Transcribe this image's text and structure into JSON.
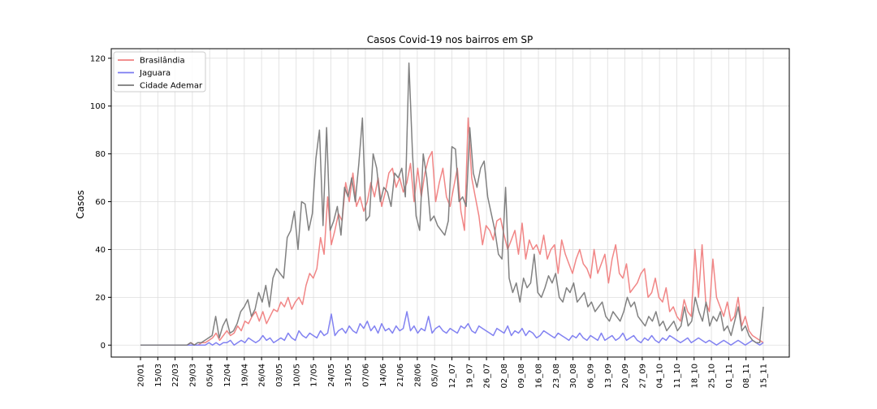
{
  "chart_data": {
    "type": "line",
    "title": "Casos Covid-19 nos bairros em SP",
    "xlabel": "",
    "ylabel": "Casos",
    "ylim": [
      -5,
      124
    ],
    "yticks": [
      0,
      20,
      40,
      60,
      80,
      100,
      120
    ],
    "grid": true,
    "legend_position": "top-left",
    "x_start": "20/01",
    "x_end": "20/11",
    "xticks": [
      "20/01",
      "15/03",
      "22/03",
      "29/03",
      "05/04",
      "12/04",
      "19/04",
      "26/04",
      "03/05",
      "10/05",
      "17/05",
      "24/05",
      "31/05",
      "07/06",
      "14/06",
      "21/06",
      "28/06",
      "05/07",
      "12_07",
      "19_07",
      "26_07",
      "02_08",
      "09_08",
      "16_08",
      "23_08",
      "30_08",
      "06_09",
      "13_09",
      "20_09",
      "27_09",
      "04_10",
      "11_10",
      "18_10",
      "25_10",
      "01_11",
      "08_11",
      "15_11"
    ],
    "series": [
      {
        "name": "Brasilândia",
        "color": "#f08080",
        "values": [
          0,
          0,
          0,
          0,
          0,
          0,
          0,
          0,
          0,
          0,
          0,
          0,
          0,
          0,
          1,
          0,
          0,
          1,
          1,
          2,
          3,
          5,
          2,
          4,
          6,
          4,
          5,
          8,
          6,
          10,
          9,
          12,
          14,
          10,
          14,
          9,
          12,
          15,
          14,
          18,
          16,
          20,
          15,
          18,
          20,
          17,
          25,
          30,
          28,
          32,
          45,
          38,
          62,
          42,
          48,
          55,
          52,
          68,
          60,
          72,
          58,
          62,
          56,
          60,
          68,
          62,
          70,
          58,
          64,
          72,
          74,
          66,
          70,
          64,
          68,
          76,
          60,
          74,
          62,
          72,
          78,
          81,
          60,
          68,
          74,
          62,
          58,
          66,
          74,
          56,
          48,
          95,
          70,
          62,
          54,
          42,
          50,
          48,
          44,
          52,
          53,
          46,
          40,
          44,
          48,
          38,
          51,
          36,
          44,
          40,
          42,
          38,
          46,
          36,
          40,
          42,
          30,
          44,
          38,
          34,
          30,
          36,
          40,
          34,
          32,
          28,
          40,
          30,
          34,
          38,
          26,
          36,
          42,
          30,
          28,
          34,
          22,
          24,
          26,
          30,
          32,
          20,
          22,
          28,
          20,
          18,
          24,
          14,
          16,
          12,
          10,
          19,
          14,
          12,
          40,
          20,
          42,
          18,
          14,
          36,
          20,
          16,
          12,
          18,
          10,
          12,
          20,
          8,
          12,
          6,
          4,
          3,
          2,
          1
        ],
        "labels": "daily"
      },
      {
        "name": "Jaguara",
        "color": "#7b7bf0",
        "values": [
          0,
          0,
          0,
          0,
          0,
          0,
          0,
          0,
          0,
          0,
          0,
          0,
          0,
          0,
          0,
          0,
          0,
          0,
          0,
          1,
          0,
          1,
          0,
          1,
          1,
          2,
          0,
          1,
          2,
          1,
          3,
          2,
          1,
          2,
          4,
          2,
          3,
          1,
          2,
          3,
          2,
          5,
          3,
          2,
          6,
          4,
          3,
          5,
          4,
          3,
          6,
          4,
          5,
          13,
          4,
          6,
          7,
          5,
          8,
          6,
          5,
          9,
          7,
          10,
          6,
          8,
          5,
          9,
          6,
          7,
          5,
          8,
          6,
          7,
          14,
          6,
          8,
          5,
          7,
          6,
          12,
          5,
          7,
          8,
          6,
          5,
          7,
          6,
          5,
          8,
          7,
          9,
          6,
          5,
          8,
          7,
          6,
          5,
          4,
          7,
          6,
          5,
          8,
          4,
          6,
          5,
          7,
          4,
          6,
          5,
          3,
          4,
          6,
          5,
          4,
          3,
          5,
          4,
          3,
          2,
          4,
          3,
          5,
          3,
          2,
          4,
          3,
          2,
          5,
          2,
          3,
          4,
          2,
          3,
          5,
          2,
          3,
          4,
          2,
          1,
          3,
          2,
          4,
          2,
          1,
          3,
          2,
          4,
          3,
          2,
          1,
          2,
          3,
          1,
          2,
          3,
          2,
          1,
          2,
          1,
          0,
          1,
          2,
          1,
          0,
          1,
          2,
          1,
          0,
          1,
          2,
          1,
          0,
          1
        ],
        "labels": "daily"
      },
      {
        "name": "Cidade Ademar",
        "color": "#7a7a7a",
        "values": [
          0,
          0,
          0,
          0,
          0,
          0,
          0,
          0,
          0,
          0,
          0,
          0,
          0,
          0,
          1,
          0,
          1,
          1,
          2,
          3,
          4,
          12,
          3,
          8,
          11,
          5,
          6,
          9,
          14,
          16,
          19,
          12,
          15,
          22,
          18,
          25,
          16,
          28,
          32,
          30,
          28,
          45,
          48,
          56,
          40,
          60,
          59,
          48,
          55,
          78,
          90,
          50,
          91,
          48,
          52,
          58,
          46,
          66,
          62,
          70,
          60,
          76,
          95,
          52,
          54,
          80,
          74,
          60,
          66,
          64,
          58,
          72,
          70,
          74,
          62,
          118,
          80,
          54,
          48,
          80,
          70,
          52,
          54,
          50,
          48,
          46,
          52,
          83,
          82,
          60,
          62,
          58,
          91,
          72,
          66,
          74,
          77,
          62,
          55,
          48,
          38,
          36,
          66,
          28,
          22,
          26,
          18,
          28,
          24,
          26,
          38,
          22,
          20,
          24,
          29,
          26,
          30,
          20,
          18,
          24,
          22,
          26,
          18,
          20,
          22,
          16,
          18,
          14,
          16,
          18,
          12,
          10,
          14,
          12,
          10,
          14,
          20,
          16,
          18,
          12,
          10,
          8,
          12,
          10,
          14,
          8,
          10,
          6,
          8,
          10,
          6,
          8,
          16,
          8,
          10,
          20,
          14,
          10,
          18,
          8,
          12,
          10,
          14,
          6,
          8,
          4,
          10,
          16,
          6,
          8,
          4,
          2,
          1,
          1,
          16
        ],
        "labels": "daily"
      }
    ]
  }
}
